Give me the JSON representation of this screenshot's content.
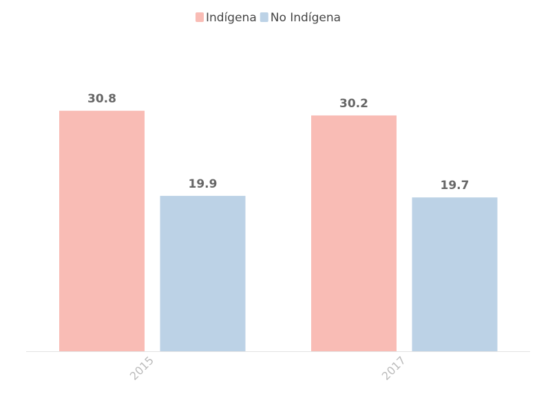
{
  "chart_data": {
    "type": "bar",
    "categories": [
      "2015",
      "2017"
    ],
    "series": [
      {
        "name": "Indígena",
        "color": "#f9bcb5",
        "values": [
          30.8,
          30.2
        ]
      },
      {
        "name": "No Indígena",
        "color": "#bcd2e6",
        "values": [
          19.9,
          19.7
        ]
      }
    ],
    "ylim": [
      0,
      35
    ],
    "legend": "top"
  }
}
